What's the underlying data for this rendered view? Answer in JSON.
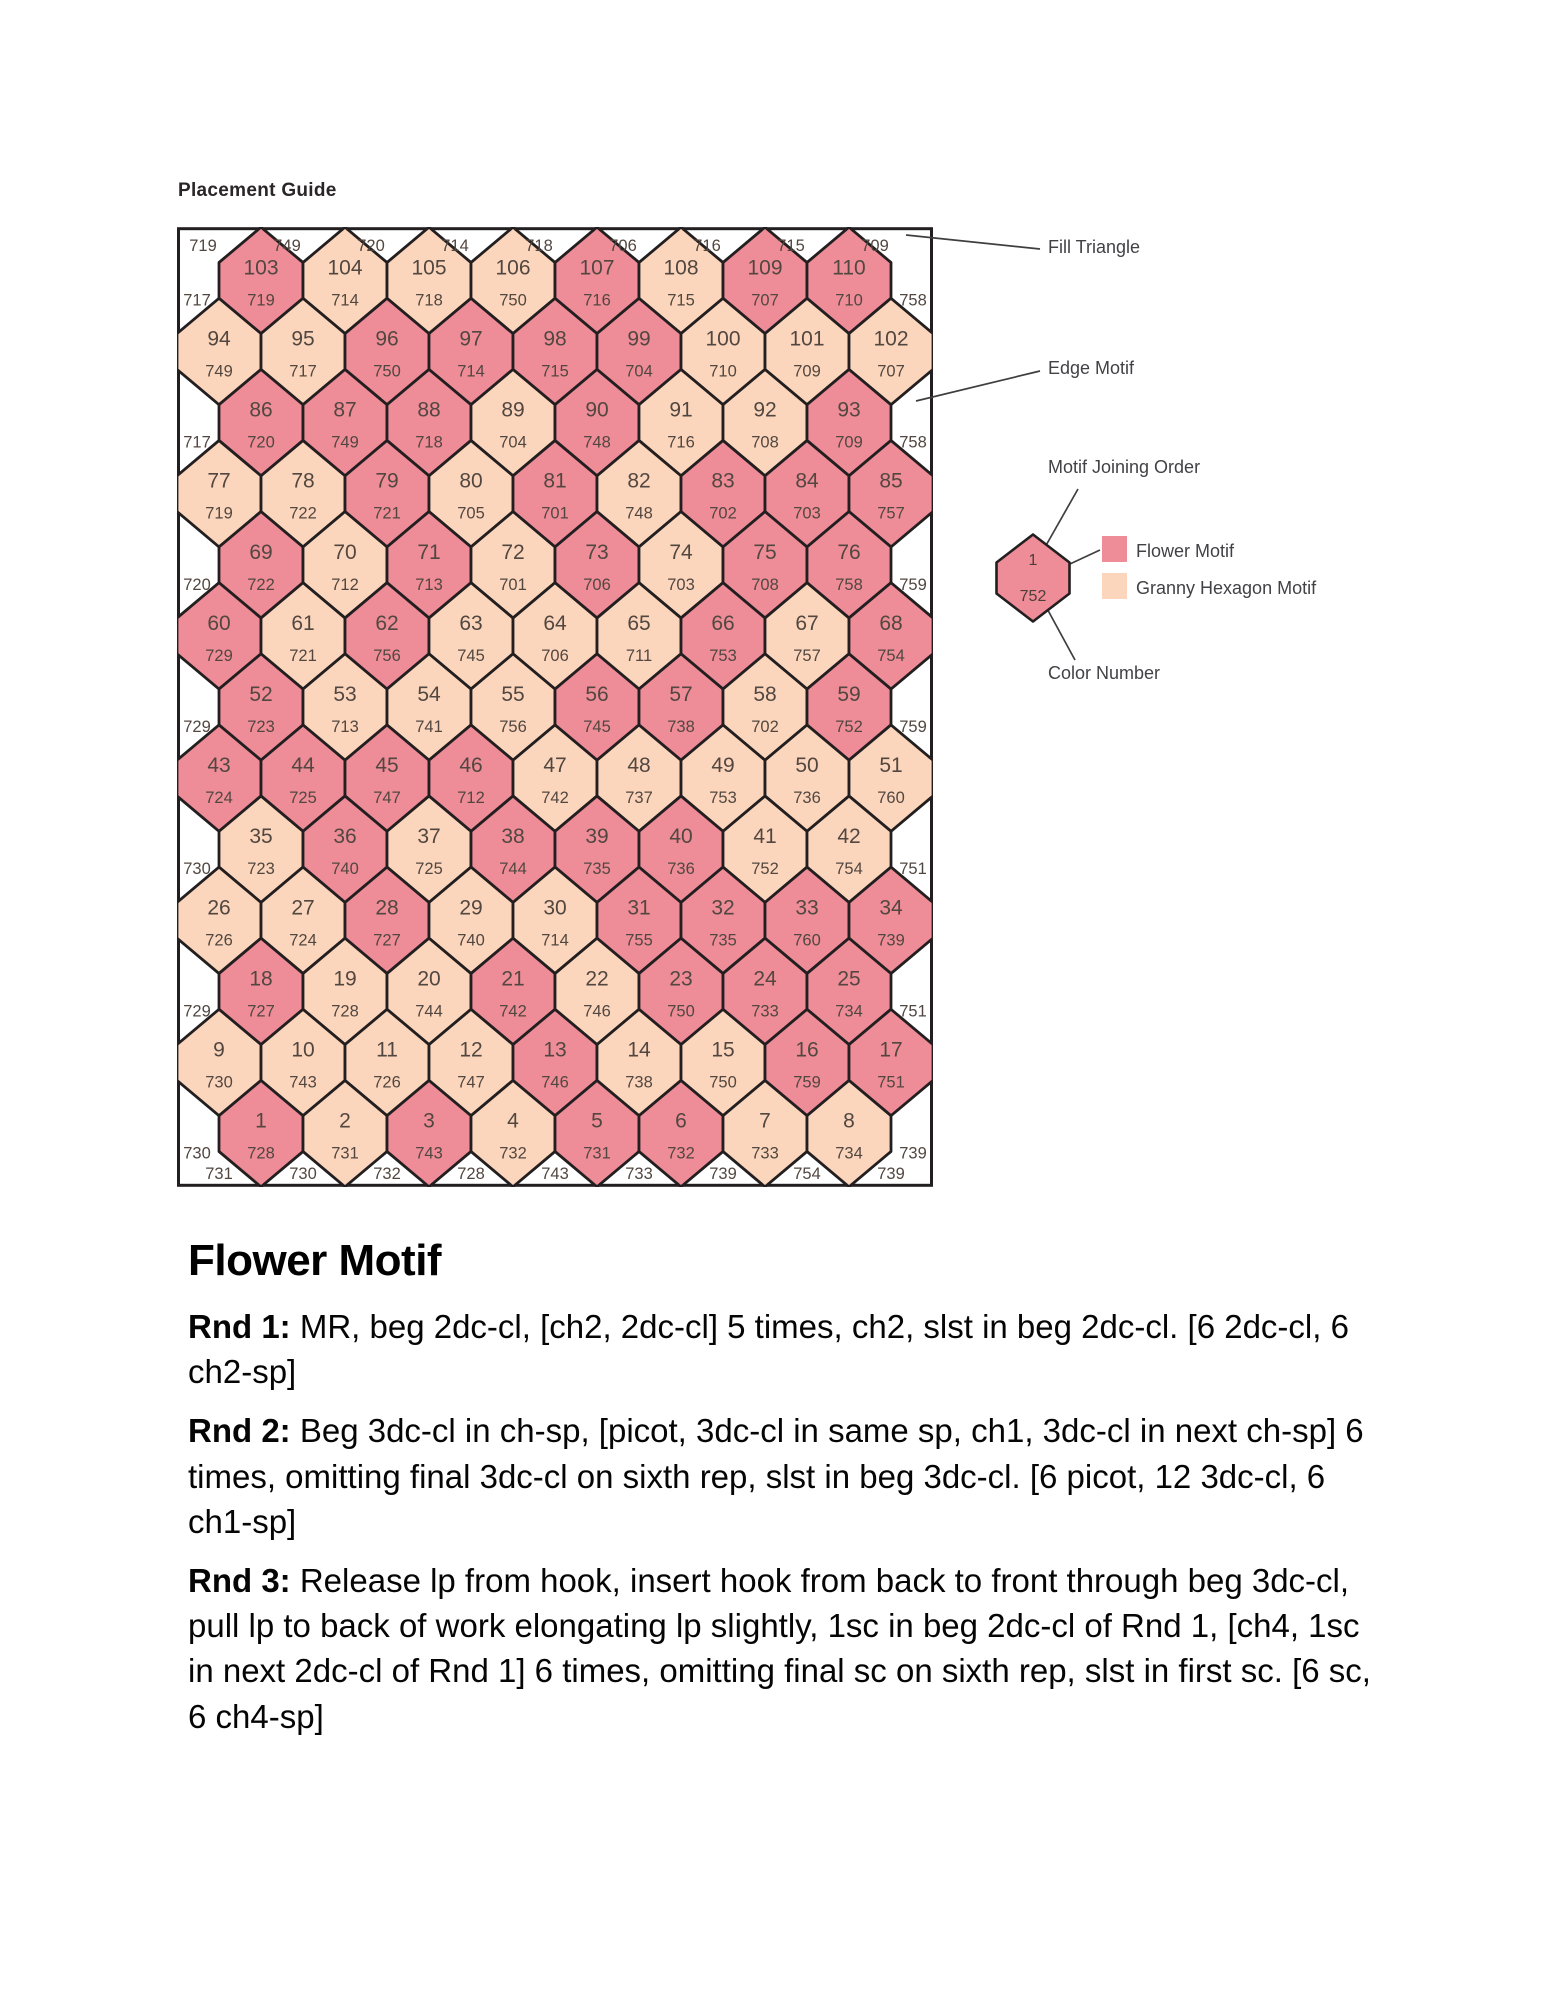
{
  "title": "Placement Guide",
  "colors": {
    "flower_motif": "#ee8c98",
    "granny_motif": "#fbd6bc",
    "outline": "#231f20",
    "number_text": "#524740",
    "page_bg": "#ffffff"
  },
  "grid": {
    "top_edge": [
      "719",
      "749",
      "720",
      "714",
      "718",
      "706",
      "716",
      "715",
      "709"
    ],
    "bottom_edge": [
      "731",
      "730",
      "732",
      "728",
      "743",
      "733",
      "739",
      "754",
      "739"
    ],
    "rows": [
      {
        "left": "717",
        "right": "758",
        "cells": [
          {
            "n": "103",
            "c": "719",
            "m": "flower"
          },
          {
            "n": "104",
            "c": "714",
            "m": "granny"
          },
          {
            "n": "105",
            "c": "718",
            "m": "granny"
          },
          {
            "n": "106",
            "c": "750",
            "m": "granny"
          },
          {
            "n": "107",
            "c": "716",
            "m": "flower"
          },
          {
            "n": "108",
            "c": "715",
            "m": "granny"
          },
          {
            "n": "109",
            "c": "707",
            "m": "flower"
          },
          {
            "n": "110",
            "c": "710",
            "m": "flower"
          }
        ]
      },
      {
        "cells": [
          {
            "n": "94",
            "c": "749",
            "m": "granny"
          },
          {
            "n": "95",
            "c": "717",
            "m": "granny"
          },
          {
            "n": "96",
            "c": "750",
            "m": "flower"
          },
          {
            "n": "97",
            "c": "714",
            "m": "flower"
          },
          {
            "n": "98",
            "c": "715",
            "m": "flower"
          },
          {
            "n": "99",
            "c": "704",
            "m": "flower"
          },
          {
            "n": "100",
            "c": "710",
            "m": "granny"
          },
          {
            "n": "101",
            "c": "709",
            "m": "granny"
          },
          {
            "n": "102",
            "c": "707",
            "m": "granny"
          }
        ]
      },
      {
        "left": "717",
        "right": "758",
        "cells": [
          {
            "n": "86",
            "c": "720",
            "m": "flower"
          },
          {
            "n": "87",
            "c": "749",
            "m": "flower"
          },
          {
            "n": "88",
            "c": "718",
            "m": "flower"
          },
          {
            "n": "89",
            "c": "704",
            "m": "granny"
          },
          {
            "n": "90",
            "c": "748",
            "m": "flower"
          },
          {
            "n": "91",
            "c": "716",
            "m": "granny"
          },
          {
            "n": "92",
            "c": "708",
            "m": "granny"
          },
          {
            "n": "93",
            "c": "709",
            "m": "flower"
          }
        ]
      },
      {
        "cells": [
          {
            "n": "77",
            "c": "719",
            "m": "granny"
          },
          {
            "n": "78",
            "c": "722",
            "m": "granny"
          },
          {
            "n": "79",
            "c": "721",
            "m": "flower"
          },
          {
            "n": "80",
            "c": "705",
            "m": "granny"
          },
          {
            "n": "81",
            "c": "701",
            "m": "flower"
          },
          {
            "n": "82",
            "c": "748",
            "m": "granny"
          },
          {
            "n": "83",
            "c": "702",
            "m": "flower"
          },
          {
            "n": "84",
            "c": "703",
            "m": "flower"
          },
          {
            "n": "85",
            "c": "757",
            "m": "flower"
          }
        ]
      },
      {
        "left": "720",
        "right": "759",
        "cells": [
          {
            "n": "69",
            "c": "722",
            "m": "flower"
          },
          {
            "n": "70",
            "c": "712",
            "m": "granny"
          },
          {
            "n": "71",
            "c": "713",
            "m": "flower"
          },
          {
            "n": "72",
            "c": "701",
            "m": "granny"
          },
          {
            "n": "73",
            "c": "706",
            "m": "flower"
          },
          {
            "n": "74",
            "c": "703",
            "m": "granny"
          },
          {
            "n": "75",
            "c": "708",
            "m": "flower"
          },
          {
            "n": "76",
            "c": "758",
            "m": "flower"
          }
        ]
      },
      {
        "cells": [
          {
            "n": "60",
            "c": "729",
            "m": "flower"
          },
          {
            "n": "61",
            "c": "721",
            "m": "granny"
          },
          {
            "n": "62",
            "c": "756",
            "m": "flower"
          },
          {
            "n": "63",
            "c": "745",
            "m": "granny"
          },
          {
            "n": "64",
            "c": "706",
            "m": "granny"
          },
          {
            "n": "65",
            "c": "711",
            "m": "granny"
          },
          {
            "n": "66",
            "c": "753",
            "m": "flower"
          },
          {
            "n": "67",
            "c": "757",
            "m": "granny"
          },
          {
            "n": "68",
            "c": "754",
            "m": "flower"
          }
        ]
      },
      {
        "left": "729",
        "right": "759",
        "cells": [
          {
            "n": "52",
            "c": "723",
            "m": "flower"
          },
          {
            "n": "53",
            "c": "713",
            "m": "granny"
          },
          {
            "n": "54",
            "c": "741",
            "m": "granny"
          },
          {
            "n": "55",
            "c": "756",
            "m": "granny"
          },
          {
            "n": "56",
            "c": "745",
            "m": "flower"
          },
          {
            "n": "57",
            "c": "738",
            "m": "flower"
          },
          {
            "n": "58",
            "c": "702",
            "m": "granny"
          },
          {
            "n": "59",
            "c": "752",
            "m": "flower"
          }
        ]
      },
      {
        "cells": [
          {
            "n": "43",
            "c": "724",
            "m": "flower"
          },
          {
            "n": "44",
            "c": "725",
            "m": "flower"
          },
          {
            "n": "45",
            "c": "747",
            "m": "flower"
          },
          {
            "n": "46",
            "c": "712",
            "m": "flower"
          },
          {
            "n": "47",
            "c": "742",
            "m": "granny"
          },
          {
            "n": "48",
            "c": "737",
            "m": "granny"
          },
          {
            "n": "49",
            "c": "753",
            "m": "granny"
          },
          {
            "n": "50",
            "c": "736",
            "m": "granny"
          },
          {
            "n": "51",
            "c": "760",
            "m": "granny"
          }
        ]
      },
      {
        "left": "730",
        "right": "751",
        "cells": [
          {
            "n": "35",
            "c": "723",
            "m": "granny"
          },
          {
            "n": "36",
            "c": "740",
            "m": "flower"
          },
          {
            "n": "37",
            "c": "725",
            "m": "granny"
          },
          {
            "n": "38",
            "c": "744",
            "m": "flower"
          },
          {
            "n": "39",
            "c": "735",
            "m": "flower"
          },
          {
            "n": "40",
            "c": "736",
            "m": "flower"
          },
          {
            "n": "41",
            "c": "752",
            "m": "granny"
          },
          {
            "n": "42",
            "c": "754",
            "m": "granny"
          }
        ]
      },
      {
        "cells": [
          {
            "n": "26",
            "c": "726",
            "m": "granny"
          },
          {
            "n": "27",
            "c": "724",
            "m": "granny"
          },
          {
            "n": "28",
            "c": "727",
            "m": "flower"
          },
          {
            "n": "29",
            "c": "740",
            "m": "granny"
          },
          {
            "n": "30",
            "c": "714",
            "m": "granny"
          },
          {
            "n": "31",
            "c": "755",
            "m": "flower"
          },
          {
            "n": "32",
            "c": "735",
            "m": "flower"
          },
          {
            "n": "33",
            "c": "760",
            "m": "flower"
          },
          {
            "n": "34",
            "c": "739",
            "m": "flower"
          }
        ]
      },
      {
        "left": "729",
        "right": "751",
        "cells": [
          {
            "n": "18",
            "c": "727",
            "m": "flower"
          },
          {
            "n": "19",
            "c": "728",
            "m": "granny"
          },
          {
            "n": "20",
            "c": "744",
            "m": "granny"
          },
          {
            "n": "21",
            "c": "742",
            "m": "flower"
          },
          {
            "n": "22",
            "c": "746",
            "m": "granny"
          },
          {
            "n": "23",
            "c": "750",
            "m": "flower"
          },
          {
            "n": "24",
            "c": "733",
            "m": "flower"
          },
          {
            "n": "25",
            "c": "734",
            "m": "flower"
          }
        ]
      },
      {
        "cells": [
          {
            "n": "9",
            "c": "730",
            "m": "granny"
          },
          {
            "n": "10",
            "c": "743",
            "m": "granny"
          },
          {
            "n": "11",
            "c": "726",
            "m": "granny"
          },
          {
            "n": "12",
            "c": "747",
            "m": "granny"
          },
          {
            "n": "13",
            "c": "746",
            "m": "flower"
          },
          {
            "n": "14",
            "c": "738",
            "m": "granny"
          },
          {
            "n": "15",
            "c": "750",
            "m": "granny"
          },
          {
            "n": "16",
            "c": "759",
            "m": "flower"
          },
          {
            "n": "17",
            "c": "751",
            "m": "flower"
          }
        ]
      },
      {
        "left": "730",
        "right": "739",
        "cells": [
          {
            "n": "1",
            "c": "728",
            "m": "flower"
          },
          {
            "n": "2",
            "c": "731",
            "m": "granny"
          },
          {
            "n": "3",
            "c": "743",
            "m": "flower"
          },
          {
            "n": "4",
            "c": "732",
            "m": "granny"
          },
          {
            "n": "5",
            "c": "731",
            "m": "flower"
          },
          {
            "n": "6",
            "c": "732",
            "m": "flower"
          },
          {
            "n": "7",
            "c": "733",
            "m": "granny"
          },
          {
            "n": "8",
            "c": "734",
            "m": "granny"
          }
        ]
      }
    ]
  },
  "legend": {
    "fill_triangle": "Fill Triangle",
    "edge_motif": "Edge Motif",
    "motif_joining_order": "Motif Joining Order",
    "color_number": "Color Number",
    "flower_motif": "Flower Motif",
    "granny_hexagon_motif": "Granny Hexagon Motif",
    "sample": {
      "order": "1",
      "color": "752"
    }
  },
  "instructions": {
    "heading": "Flower Motif",
    "rounds": [
      {
        "label": "Rnd 1:",
        "text": " MR, beg 2dc-cl, [ch2, 2dc-cl] 5 times, ch2, slst in beg 2dc-cl. [6 2dc-cl, 6 ch2-sp]"
      },
      {
        "label": "Rnd 2:",
        "text": " Beg 3dc-cl in ch-sp, [picot, 3dc-cl in same sp, ch1, 3dc-cl in next ch-sp] 6 times, omitting final 3dc-cl on sixth rep, slst in beg 3dc-cl. [6 picot, 12 3dc-cl, 6 ch1-sp]"
      },
      {
        "label": "Rnd 3:",
        "text": " Release lp from hook, insert hook from back to front through beg 3dc-cl, pull lp to back of work elongating lp slightly, 1sc in beg 2dc-cl of Rnd 1, [ch4, 1sc in next 2dc-cl of Rnd 1] 6 times, omitting final sc on sixth rep, slst in first sc. [6 sc, 6 ch4-sp]"
      }
    ]
  }
}
